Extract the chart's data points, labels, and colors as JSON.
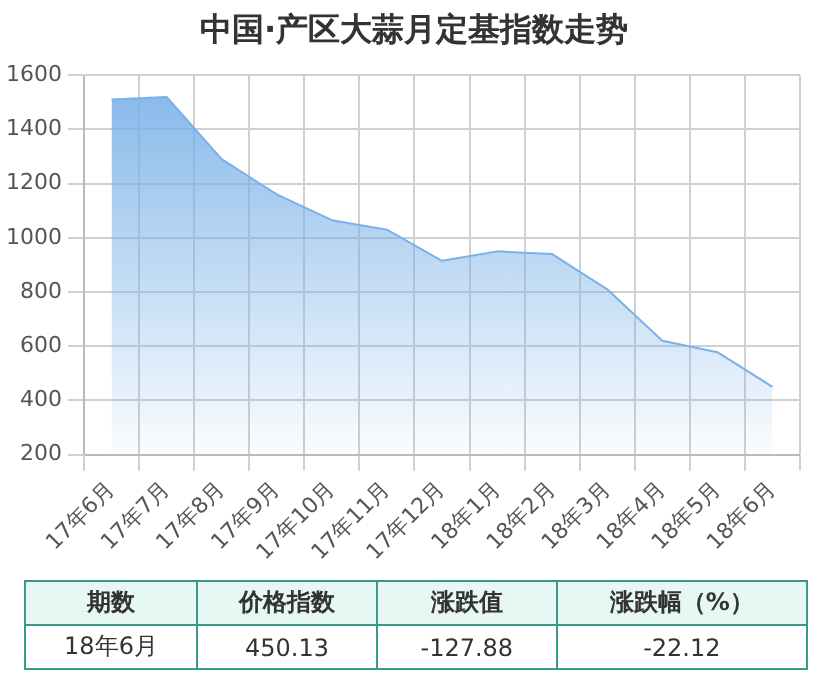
{
  "chart_data": {
    "type": "area",
    "title": "中国·产区大蒜月定基指数走势",
    "categories": [
      "17年6月",
      "17年7月",
      "17年8月",
      "17年9月",
      "17年10月",
      "17年11月",
      "17年12月",
      "18年1月",
      "18年2月",
      "18年3月",
      "18年4月",
      "18年5月",
      "18年6月"
    ],
    "series": [
      {
        "color": "#7ab1e8",
        "values": [
          1510,
          1520,
          1290,
          1160,
          1065,
          1030,
          915,
          950,
          940,
          810,
          620,
          578,
          450
        ]
      }
    ],
    "ylim": [
      200,
      1600
    ],
    "yticks": [
      200,
      400,
      600,
      800,
      1000,
      1200,
      1400,
      1600
    ],
    "grid": true,
    "legend": false,
    "marker": "none",
    "annotations": [
      "期数",
      "价格指数",
      "涨跌值",
      "涨跌幅（%）",
      "18年6月",
      "450.13",
      "-127.88",
      "-22.12"
    ]
  }
}
